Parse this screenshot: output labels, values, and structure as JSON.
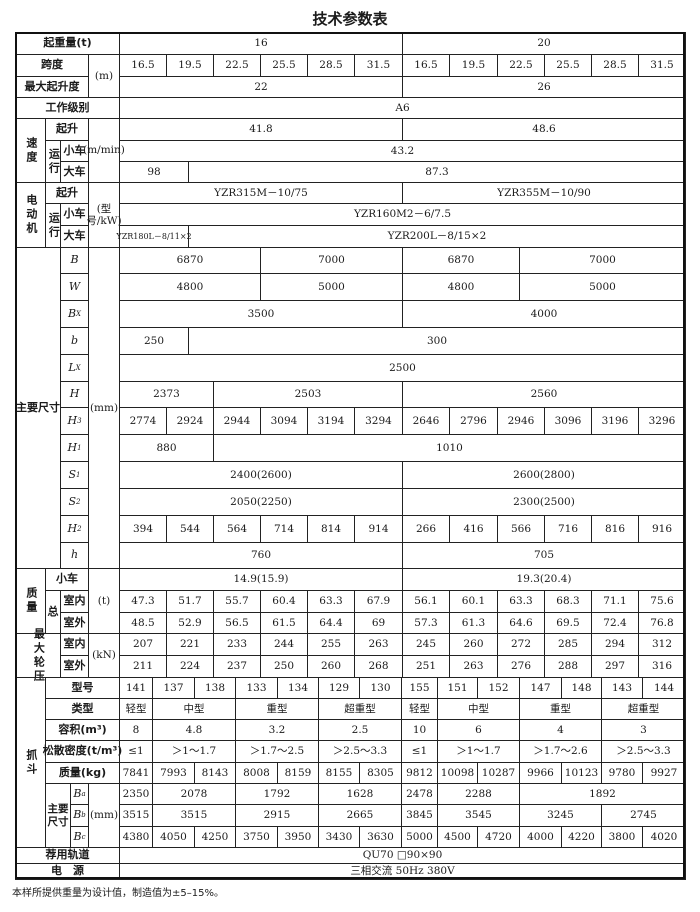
{
  "title": "技术参数表",
  "capacity": {
    "label": "起重量(t)",
    "values": [
      "16",
      "20"
    ]
  },
  "span": {
    "label": "跨度",
    "unit": "(m)",
    "values": [
      "16.5",
      "19.5",
      "22.5",
      "25.5",
      "28.5",
      "31.5",
      "16.5",
      "19.5",
      "22.5",
      "25.5",
      "28.5",
      "31.5"
    ]
  },
  "lift_height": {
    "label": "最大起升度",
    "values": [
      "22",
      "26"
    ]
  },
  "work_class": {
    "label": "工作级别",
    "value": "A6"
  },
  "speed": {
    "label": "速度",
    "hoist_label": "起升",
    "travel_label": "运行",
    "trolley_label": "小车",
    "crane_label": "大车",
    "unit": "(m/min)",
    "hoist": [
      "41.8",
      "48.6"
    ],
    "trolley": "43.2",
    "crane": [
      "98",
      "87.3"
    ]
  },
  "motor": {
    "label": "电动机",
    "hoist_label": "起升",
    "travel_label": "运行",
    "trolley_label": "小车",
    "crane_label": "大车",
    "unit": "(型号/kW)",
    "hoist": [
      "YZR315M－10/75",
      "YZR355M－10/90"
    ],
    "trolley": "YZR160M2－6/7.5",
    "crane": [
      "YZR180L－8/11×2",
      "YZR200L－8/15×2"
    ]
  },
  "dims": {
    "label": "主要尺寸",
    "unit": "(mm)",
    "rows": [
      {
        "sym": "B",
        "sub": "",
        "values": [
          "6870",
          "7000",
          "6870",
          "7000"
        ]
      },
      {
        "sym": "W",
        "sub": "",
        "values": [
          "4800",
          "5000",
          "4800",
          "5000"
        ]
      },
      {
        "sym": "B",
        "sub": "X",
        "values": [
          "3500",
          "4000"
        ]
      },
      {
        "sym": "b",
        "sub": "",
        "values": [
          "250",
          "300"
        ]
      },
      {
        "sym": "L",
        "sub": "X",
        "values": [
          "2500"
        ]
      },
      {
        "sym": "H",
        "sub": "",
        "values": [
          "2373",
          "2503",
          "2560"
        ]
      },
      {
        "sym": "H",
        "sub": "3",
        "values": [
          "2774",
          "2924",
          "2944",
          "3094",
          "3194",
          "3294",
          "2646",
          "2796",
          "2946",
          "3096",
          "3196",
          "3296"
        ]
      },
      {
        "sym": "H",
        "sub": "1",
        "values": [
          "880",
          "1010"
        ]
      },
      {
        "sym": "S",
        "sub": "1",
        "values": [
          "2400(2600)",
          "2600(2800)"
        ]
      },
      {
        "sym": "S",
        "sub": "2",
        "values": [
          "2050(2250)",
          "2300(2500)"
        ]
      },
      {
        "sym": "H",
        "sub": "2",
        "values": [
          "394",
          "544",
          "564",
          "714",
          "814",
          "914",
          "266",
          "416",
          "566",
          "716",
          "816",
          "916"
        ]
      },
      {
        "sym": "h",
        "sub": "",
        "values": [
          "760",
          "705"
        ]
      }
    ]
  },
  "mass": {
    "label": "质量",
    "total_label": "总",
    "trolley_label": "小车",
    "indoor_label": "室内",
    "outdoor_label": "室外",
    "unit": "(t)",
    "trolley": [
      "14.9(15.9)",
      "19.3(20.4)"
    ],
    "indoor": [
      "47.3",
      "51.7",
      "55.7",
      "60.4",
      "63.3",
      "67.9",
      "56.1",
      "60.1",
      "63.3",
      "68.3",
      "71.1",
      "75.6"
    ],
    "outdoor": [
      "48.5",
      "52.9",
      "56.5",
      "61.5",
      "64.4",
      "69",
      "57.3",
      "61.3",
      "64.6",
      "69.5",
      "72.4",
      "76.8"
    ]
  },
  "wheel_load": {
    "label": "最大轮压",
    "indoor_label": "室内",
    "outdoor_label": "室外",
    "unit": "(kN)",
    "indoor": [
      "207",
      "221",
      "233",
      "244",
      "255",
      "263",
      "245",
      "260",
      "272",
      "285",
      "294",
      "312"
    ],
    "outdoor": [
      "211",
      "224",
      "237",
      "250",
      "260",
      "268",
      "251",
      "263",
      "276",
      "288",
      "297",
      "316"
    ]
  },
  "grab": {
    "label": "抓斗",
    "model_label": "型号",
    "models": [
      "141",
      "137",
      "138",
      "133",
      "134",
      "129",
      "130",
      "155",
      "151",
      "152",
      "147",
      "148",
      "143",
      "144"
    ],
    "type_label": "类型",
    "types": [
      "轻型",
      "中型",
      "重型",
      "超重型",
      "轻型",
      "中型",
      "重型",
      "超重型"
    ],
    "volume_label": "容积(m³)",
    "volumes": [
      "8",
      "4.8",
      "3.2",
      "2.5",
      "10",
      "6",
      "4",
      "3"
    ],
    "density_label": "松散密度(t/m³)",
    "densities": [
      "≤1",
      "＞1～1.7",
      "＞1.7～2.5",
      "＞2.5～3.3",
      "≤1",
      "＞1～1.7",
      "＞1.7～2.6",
      "＞2.5～3.3"
    ],
    "weight_label": "质量(kg)",
    "weights": [
      "7841",
      "7993",
      "8143",
      "8008",
      "8159",
      "8155",
      "8305",
      "9812",
      "10098",
      "10287",
      "9966",
      "10123",
      "9780",
      "9927"
    ],
    "dims_label": "主要尺寸",
    "dims_unit": "(mm)",
    "Ba": {
      "sym": "B",
      "sub": "a",
      "values": [
        "2350",
        "2078",
        "1792",
        "1628",
        "2478",
        "2288",
        "1892"
      ]
    },
    "Bb": {
      "sym": "B",
      "sub": "b",
      "values": [
        "3515",
        "3515",
        "2915",
        "2665",
        "3845",
        "3545",
        "3245",
        "2745"
      ]
    },
    "Bc": {
      "sym": "B",
      "sub": "c",
      "values": [
        "4380",
        "4050",
        "4250",
        "3750",
        "3950",
        "3430",
        "3630",
        "5000",
        "4500",
        "4720",
        "4000",
        "4220",
        "3800",
        "4020"
      ]
    }
  },
  "rail": {
    "label": "荐用轨道",
    "value": "QU70  □90×90"
  },
  "power": {
    "label": "电　源",
    "value": "三相交流  50Hz  380V"
  },
  "footnote": "本样所提供重量为设计值，制造值为±5–15%。"
}
